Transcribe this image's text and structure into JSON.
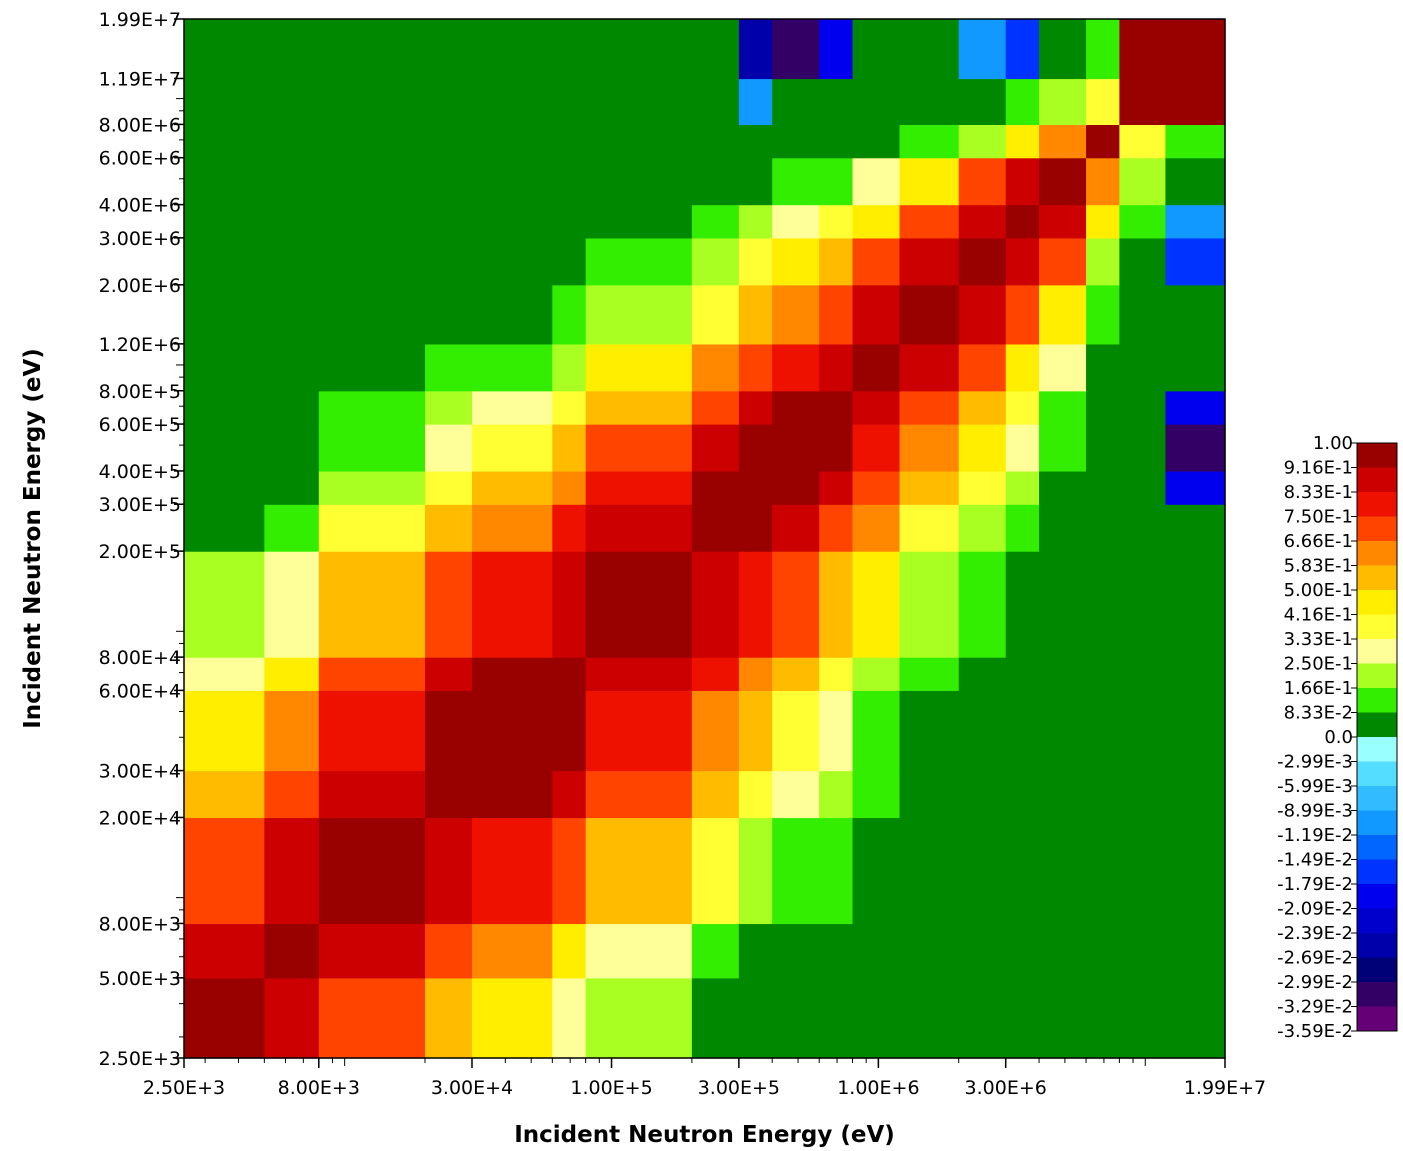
{
  "chart_data": {
    "type": "heatmap",
    "title": "",
    "xlabel": "Incident Neutron Energy (eV)",
    "ylabel": "Incident Neutron Energy (eV)",
    "x_scale": "log",
    "y_scale": "log",
    "xlim": [
      2500,
      19900000
    ],
    "ylim": [
      2500,
      19900000
    ],
    "x_tick_labels": [
      {
        "value": 2500,
        "label": "2.50E+3"
      },
      {
        "value": 8000,
        "label": "8.00E+3"
      },
      {
        "value": 30000,
        "label": "3.00E+4"
      },
      {
        "value": 100000,
        "label": "1.00E+5"
      },
      {
        "value": 300000,
        "label": "3.00E+5"
      },
      {
        "value": 1000000,
        "label": "1.00E+6"
      },
      {
        "value": 3000000,
        "label": "3.00E+6"
      },
      {
        "value": 19900000,
        "label": "1.99E+7"
      }
    ],
    "y_tick_labels": [
      {
        "value": 19900000,
        "label": "1.99E+7"
      },
      {
        "value": 11900000,
        "label": "1.19E+7"
      },
      {
        "value": 8000000,
        "label": "8.00E+6"
      },
      {
        "value": 6000000,
        "label": "6.00E+6"
      },
      {
        "value": 4000000,
        "label": "4.00E+6"
      },
      {
        "value": 3000000,
        "label": "3.00E+6"
      },
      {
        "value": 2000000,
        "label": "2.00E+6"
      },
      {
        "value": 1200000,
        "label": "1.20E+6"
      },
      {
        "value": 800000,
        "label": "8.00E+5"
      },
      {
        "value": 600000,
        "label": "6.00E+5"
      },
      {
        "value": 400000,
        "label": "4.00E+5"
      },
      {
        "value": 300000,
        "label": "3.00E+5"
      },
      {
        "value": 200000,
        "label": "2.00E+5"
      },
      {
        "value": 80000,
        "label": "8.00E+4"
      },
      {
        "value": 60000,
        "label": "6.00E+4"
      },
      {
        "value": 30000,
        "label": "3.00E+4"
      },
      {
        "value": 20000,
        "label": "2.00E+4"
      },
      {
        "value": 8000,
        "label": "8.00E+3"
      },
      {
        "value": 5000,
        "label": "5.00E+3"
      },
      {
        "value": 2500,
        "label": "2.50E+3"
      }
    ],
    "group_boundaries": [
      2500,
      5000,
      8000,
      20000,
      30000,
      60000,
      80000,
      200000,
      300000,
      400000,
      600000,
      800000,
      1200000,
      2000000,
      3000000,
      4000000,
      6000000,
      8000000,
      11900000,
      19900000
    ],
    "values": [
      [
        0.93,
        0.88,
        0.7,
        0.55,
        0.45,
        0.3,
        0.2,
        0.08,
        0.04,
        0.02,
        0.0,
        0.0,
        0.0,
        0.0,
        0.0,
        0.0,
        0.0,
        0.0,
        0.0
      ],
      [
        0.88,
        0.94,
        0.85,
        0.7,
        0.6,
        0.45,
        0.3,
        0.15,
        0.08,
        0.04,
        0.02,
        0.0,
        0.0,
        0.0,
        0.0,
        0.0,
        0.0,
        0.0,
        0.0
      ],
      [
        0.7,
        0.85,
        0.95,
        0.88,
        0.82,
        0.72,
        0.55,
        0.38,
        0.25,
        0.15,
        0.1,
        0.05,
        0.02,
        0.0,
        0.0,
        0.0,
        0.0,
        0.0,
        0.0
      ],
      [
        0.55,
        0.7,
        0.88,
        0.96,
        0.94,
        0.88,
        0.7,
        0.55,
        0.4,
        0.3,
        0.2,
        0.1,
        0.05,
        0.02,
        0.0,
        0.0,
        0.0,
        0.0,
        0.0
      ],
      [
        0.45,
        0.6,
        0.82,
        0.94,
        0.97,
        0.92,
        0.8,
        0.65,
        0.52,
        0.4,
        0.3,
        0.15,
        0.08,
        0.03,
        0.0,
        0.0,
        0.0,
        0.0,
        0.0
      ],
      [
        0.3,
        0.45,
        0.72,
        0.88,
        0.92,
        0.96,
        0.88,
        0.76,
        0.64,
        0.52,
        0.4,
        0.25,
        0.12,
        0.05,
        0.0,
        0.0,
        0.0,
        0.0,
        0.0
      ],
      [
        0.2,
        0.3,
        0.55,
        0.7,
        0.8,
        0.88,
        0.95,
        0.88,
        0.8,
        0.7,
        0.58,
        0.42,
        0.22,
        0.1,
        0.04,
        0.0,
        0.0,
        0.0,
        0.0
      ],
      [
        0.08,
        0.15,
        0.38,
        0.55,
        0.65,
        0.76,
        0.88,
        0.96,
        0.92,
        0.85,
        0.75,
        0.6,
        0.4,
        0.22,
        0.1,
        0.03,
        0.0,
        0.0,
        0.0
      ],
      [
        0.04,
        0.08,
        0.25,
        0.4,
        0.52,
        0.64,
        0.8,
        0.92,
        0.97,
        0.93,
        0.86,
        0.72,
        0.52,
        0.34,
        0.18,
        0.06,
        0.0,
        0.0,
        -0.02
      ],
      [
        0.02,
        0.04,
        0.15,
        0.3,
        0.4,
        0.52,
        0.7,
        0.85,
        0.93,
        0.97,
        0.92,
        0.82,
        0.62,
        0.44,
        0.26,
        0.1,
        0.0,
        0.0,
        -0.03
      ],
      [
        0.0,
        0.02,
        0.1,
        0.2,
        0.3,
        0.4,
        0.58,
        0.75,
        0.86,
        0.92,
        0.96,
        0.9,
        0.74,
        0.55,
        0.36,
        0.16,
        0.0,
        0.0,
        -0.02
      ],
      [
        0.0,
        0.0,
        0.05,
        0.1,
        0.15,
        0.25,
        0.42,
        0.6,
        0.72,
        0.82,
        0.9,
        0.95,
        0.88,
        0.7,
        0.5,
        0.28,
        0.03,
        0.0,
        0.0
      ],
      [
        0.0,
        0.0,
        0.02,
        0.05,
        0.08,
        0.12,
        0.22,
        0.4,
        0.52,
        0.62,
        0.74,
        0.88,
        0.96,
        0.88,
        0.72,
        0.5,
        0.1,
        0.02,
        0.0
      ],
      [
        0.0,
        0.0,
        0.0,
        0.02,
        0.03,
        0.05,
        0.1,
        0.22,
        0.34,
        0.44,
        0.55,
        0.7,
        0.88,
        0.96,
        0.9,
        0.74,
        0.25,
        0.05,
        -0.015
      ],
      [
        0.0,
        0.0,
        0.0,
        0.0,
        0.0,
        0.0,
        0.04,
        0.1,
        0.18,
        0.26,
        0.36,
        0.5,
        0.72,
        0.9,
        0.97,
        0.9,
        0.42,
        0.1,
        -0.01
      ],
      [
        0.0,
        0.0,
        0.0,
        0.0,
        0.0,
        0.0,
        0.0,
        0.03,
        0.06,
        0.1,
        0.16,
        0.28,
        0.5,
        0.74,
        0.9,
        0.97,
        0.66,
        0.2,
        0.0
      ],
      [
        0.0,
        0.0,
        0.0,
        0.0,
        0.0,
        0.0,
        0.0,
        0.0,
        0.0,
        0.0,
        0.0,
        0.03,
        0.1,
        0.25,
        0.42,
        0.66,
        0.98,
        0.35,
        0.15
      ],
      [
        0.0,
        0.0,
        0.0,
        0.0,
        0.0,
        0.0,
        0.0,
        0.0,
        -0.01,
        0.0,
        0.0,
        0.0,
        0.02,
        0.05,
        0.1,
        0.2,
        0.35,
        0.96,
        0.92
      ],
      [
        0.0,
        0.0,
        0.0,
        0.0,
        0.0,
        0.0,
        0.0,
        0.0,
        -0.025,
        -0.03,
        -0.02,
        0.0,
        0.0,
        -0.01,
        -0.015,
        0.0,
        0.15,
        0.92,
        0.96
      ]
    ],
    "colorbar_labels": [
      "1.00",
      "9.16E-1",
      "8.33E-1",
      "7.50E-1",
      "6.66E-1",
      "5.83E-1",
      "5.00E-1",
      "4.16E-1",
      "3.33E-1",
      "2.50E-1",
      "1.66E-1",
      "8.33E-2",
      "0.0",
      "-2.99E-3",
      "-5.99E-3",
      "-8.99E-3",
      "-1.19E-2",
      "-1.49E-2",
      "-1.79E-2",
      "-2.09E-2",
      "-2.39E-2",
      "-2.69E-2",
      "-2.99E-2",
      "-3.29E-2",
      "-3.59E-2"
    ],
    "colorbar_colors": [
      "#990000",
      "#cc0000",
      "#ee1100",
      "#ff4400",
      "#ff8800",
      "#ffbb00",
      "#ffee00",
      "#ffff33",
      "#ffff99",
      "#aaff22",
      "#33ee00",
      "#008800",
      "#99ffff",
      "#55ddff",
      "#33bbff",
      "#1199ff",
      "#0066ff",
      "#0033ff",
      "#0000ee",
      "#0000cc",
      "#0000aa",
      "#000077",
      "#330066",
      "#660077"
    ],
    "colorbar_position": "right"
  }
}
